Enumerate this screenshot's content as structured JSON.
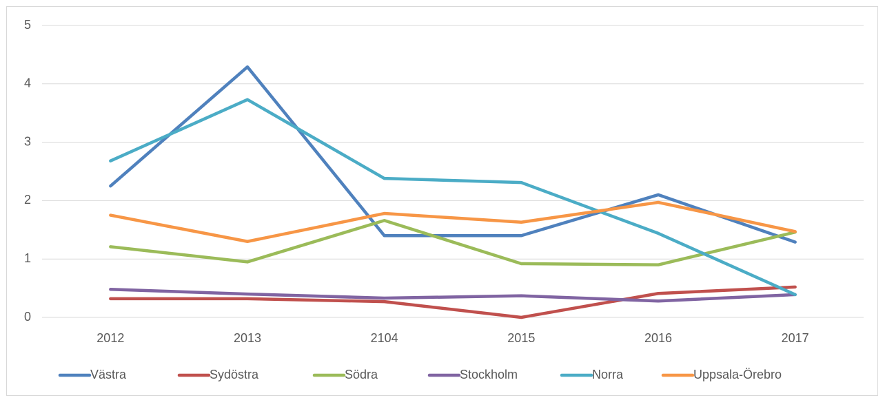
{
  "chart_data": {
    "type": "line",
    "categories": [
      "2012",
      "2013",
      "2104",
      "2015",
      "2016",
      "2017"
    ],
    "series": [
      {
        "name": "Västra",
        "color": "#4f81bd",
        "values": [
          2.25,
          4.29,
          1.4,
          1.4,
          2.1,
          1.29
        ]
      },
      {
        "name": "Sydöstra",
        "color": "#c0504d",
        "values": [
          0.32,
          0.32,
          0.27,
          0,
          0.41,
          0.52
        ]
      },
      {
        "name": "Södra",
        "color": "#9bbb59",
        "values": [
          1.21,
          0.95,
          1.66,
          0.92,
          0.9,
          1.46
        ]
      },
      {
        "name": "Stockholm",
        "color": "#8064a2",
        "values": [
          0.48,
          0.4,
          0.33,
          0.37,
          0.28,
          0.39
        ]
      },
      {
        "name": "Norra",
        "color": "#4bacc6",
        "values": [
          2.68,
          3.73,
          2.38,
          2.31,
          1.44,
          0.39
        ]
      },
      {
        "name": "Uppsala-Örebro",
        "color": "#f79646",
        "values": [
          1.75,
          1.3,
          1.78,
          1.63,
          1.97,
          1.47
        ]
      }
    ],
    "ylim": [
      0,
      5
    ],
    "yticks": [
      0,
      1,
      2,
      3,
      4,
      5
    ],
    "grid": true,
    "legend": "bottom"
  }
}
